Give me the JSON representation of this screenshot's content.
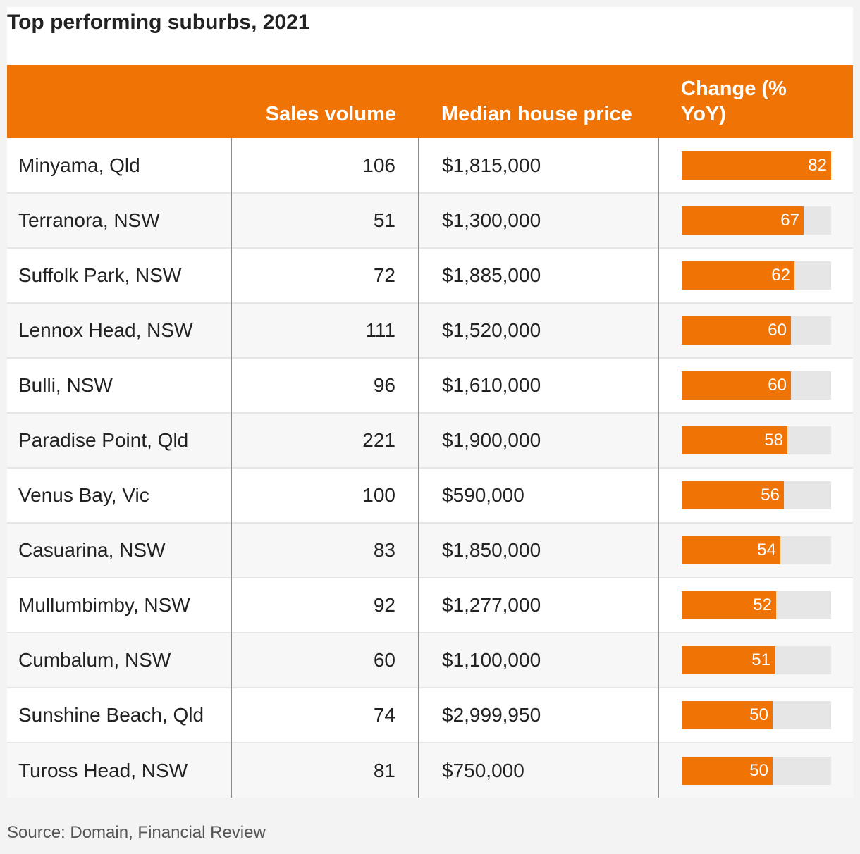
{
  "title": "Top performing suburbs, 2021",
  "headers": {
    "suburb": "",
    "sales_volume": "Sales volume",
    "median_price": "Median house price",
    "change": "Change (% YoY)"
  },
  "rows": [
    {
      "suburb": "Minyama, Qld",
      "sales_volume": "106",
      "median_price": "$1,815,000",
      "change": "82"
    },
    {
      "suburb": "Terranora, NSW",
      "sales_volume": "51",
      "median_price": "$1,300,000",
      "change": "67"
    },
    {
      "suburb": "Suffolk Park, NSW",
      "sales_volume": "72",
      "median_price": "$1,885,000",
      "change": "62"
    },
    {
      "suburb": "Lennox Head, NSW",
      "sales_volume": "111",
      "median_price": "$1,520,000",
      "change": "60"
    },
    {
      "suburb": "Bulli, NSW",
      "sales_volume": "96",
      "median_price": "$1,610,000",
      "change": "60"
    },
    {
      "suburb": "Paradise Point, Qld",
      "sales_volume": "221",
      "median_price": "$1,900,000",
      "change": "58"
    },
    {
      "suburb": "Venus Bay, Vic",
      "sales_volume": "100",
      "median_price": "$590,000",
      "change": "56"
    },
    {
      "suburb": "Casuarina, NSW",
      "sales_volume": "83",
      "median_price": "$1,850,000",
      "change": "54"
    },
    {
      "suburb": "Mullumbimby, NSW",
      "sales_volume": "92",
      "median_price": "$1,277,000",
      "change": "52"
    },
    {
      "suburb": "Cumbalum, NSW",
      "sales_volume": "60",
      "median_price": "$1,100,000",
      "change": "51"
    },
    {
      "suburb": "Sunshine Beach, Qld",
      "sales_volume": "74",
      "median_price": "$2,999,950",
      "change": "50"
    },
    {
      "suburb": "Tuross Head, NSW",
      "sales_volume": "81",
      "median_price": "$750,000",
      "change": "50"
    }
  ],
  "source": "Source: Domain, Financial Review",
  "colors": {
    "accent": "#f07306",
    "bar_track": "#e6e6e6"
  },
  "chart_data": {
    "type": "table",
    "title": "Top performing suburbs, 2021",
    "columns": [
      "",
      "Sales volume",
      "Median house price",
      "Change (% YoY)"
    ],
    "categories": [
      "Minyama, Qld",
      "Terranora, NSW",
      "Suffolk Park, NSW",
      "Lennox Head, NSW",
      "Bulli, NSW",
      "Paradise Point, Qld",
      "Venus Bay, Vic",
      "Casuarina, NSW",
      "Mullumbimby, NSW",
      "Cumbalum, NSW",
      "Sunshine Beach, Qld",
      "Tuross Head, NSW"
    ],
    "series": [
      {
        "name": "Sales volume",
        "values": [
          106,
          51,
          72,
          111,
          96,
          221,
          100,
          83,
          92,
          60,
          74,
          81
        ]
      },
      {
        "name": "Median house price",
        "values": [
          1815000,
          1300000,
          1885000,
          1520000,
          1610000,
          1900000,
          590000,
          1850000,
          1277000,
          1100000,
          2999950,
          750000
        ]
      },
      {
        "name": "Change (% YoY)",
        "values": [
          82,
          67,
          62,
          60,
          60,
          58,
          56,
          54,
          52,
          51,
          50,
          50
        ]
      }
    ],
    "bar_scale_max": 82,
    "grid": false,
    "legend": "none"
  }
}
